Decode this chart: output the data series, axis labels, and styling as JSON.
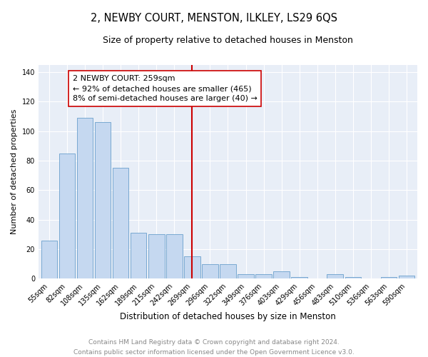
{
  "title": "2, NEWBY COURT, MENSTON, ILKLEY, LS29 6QS",
  "subtitle": "Size of property relative to detached houses in Menston",
  "xlabel": "Distribution of detached houses by size in Menston",
  "ylabel": "Number of detached properties",
  "categories": [
    "55sqm",
    "82sqm",
    "108sqm",
    "135sqm",
    "162sqm",
    "189sqm",
    "215sqm",
    "242sqm",
    "269sqm",
    "296sqm",
    "322sqm",
    "349sqm",
    "376sqm",
    "403sqm",
    "429sqm",
    "456sqm",
    "483sqm",
    "510sqm",
    "536sqm",
    "563sqm",
    "590sqm"
  ],
  "values": [
    26,
    85,
    109,
    106,
    75,
    31,
    30,
    30,
    15,
    10,
    10,
    3,
    3,
    5,
    1,
    0,
    3,
    1,
    0,
    1,
    2
  ],
  "bar_color": "#c5d8f0",
  "bar_edge_color": "#6aa0cc",
  "vline_x_index": 8,
  "vline_color": "#cc0000",
  "annotation_text": "2 NEWBY COURT: 259sqm\n← 92% of detached houses are smaller (465)\n8% of semi-detached houses are larger (40) →",
  "annotation_box_color": "#ffffff",
  "annotation_box_edge": "#cc0000",
  "ylim": [
    0,
    145
  ],
  "yticks": [
    0,
    20,
    40,
    60,
    80,
    100,
    120,
    140
  ],
  "background_color": "#e8eef7",
  "grid_color": "#ffffff",
  "footer_text": "Contains HM Land Registry data © Crown copyright and database right 2024.\nContains public sector information licensed under the Open Government Licence v3.0.",
  "title_fontsize": 10.5,
  "subtitle_fontsize": 9,
  "xlabel_fontsize": 8.5,
  "ylabel_fontsize": 8,
  "tick_fontsize": 7,
  "annotation_fontsize": 8,
  "footer_fontsize": 6.5
}
